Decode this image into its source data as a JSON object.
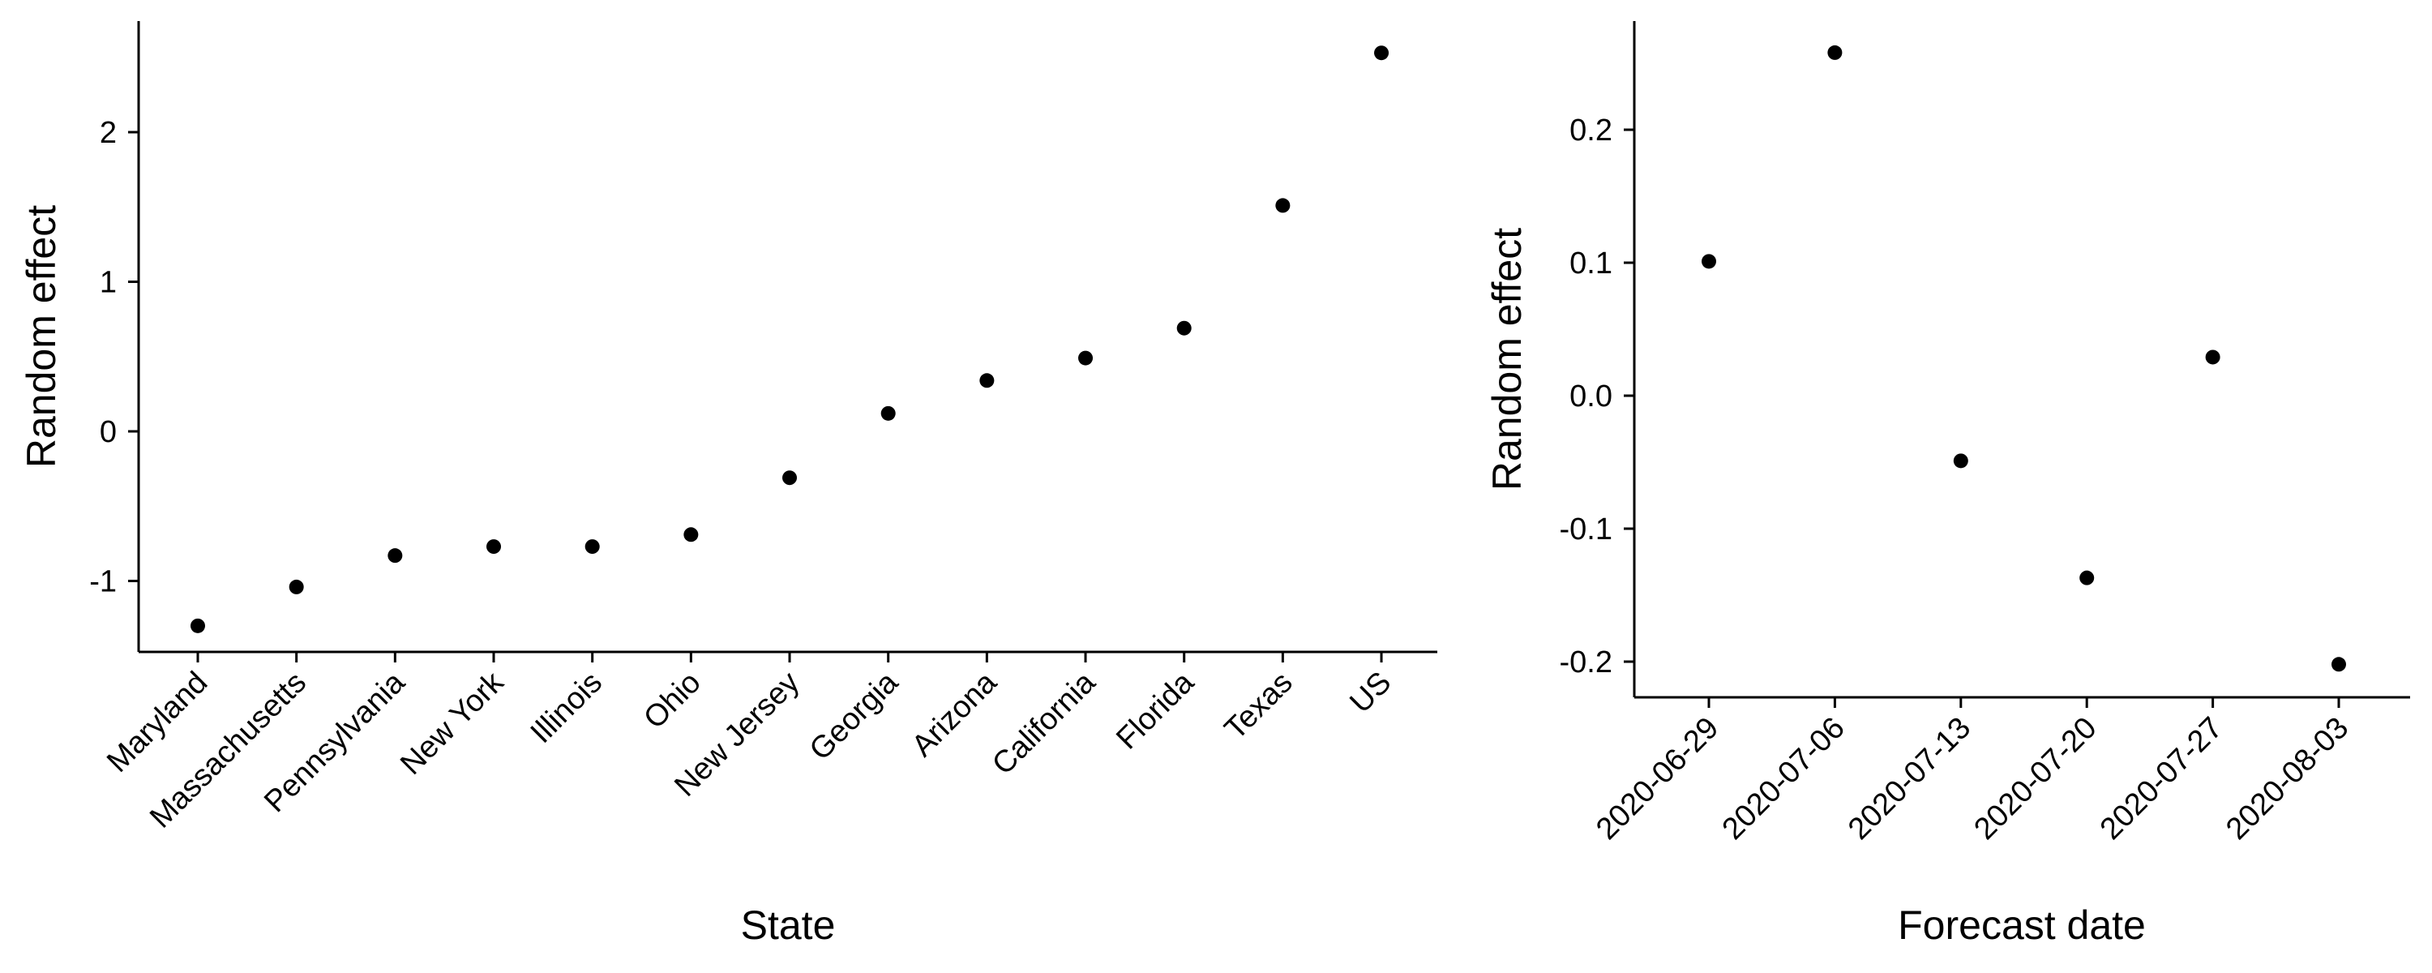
{
  "chart_data": [
    {
      "type": "scatter",
      "xlabel": "State",
      "ylabel": "Random effect",
      "categories": [
        "Maryland",
        "Massachusetts",
        "Pennsylvania",
        "New York",
        "Illinois",
        "Ohio",
        "New Jersey",
        "Georgia",
        "Arizona",
        "California",
        "Florida",
        "Texas",
        "US"
      ],
      "values": [
        -1.3,
        -1.04,
        -0.83,
        -0.77,
        -0.77,
        -0.69,
        -0.31,
        0.12,
        0.34,
        0.49,
        0.69,
        1.51,
        2.53
      ],
      "ylim": [
        -1.5,
        2.75
      ],
      "yticks": [
        -1,
        0,
        1,
        2
      ],
      "grid": false,
      "point_color": "#000000"
    },
    {
      "type": "scatter",
      "xlabel": "Forecast date",
      "ylabel": "Random effect",
      "categories": [
        "2020-06-29",
        "2020-07-06",
        "2020-07-13",
        "2020-07-20",
        "2020-07-27",
        "2020-08-03"
      ],
      "values": [
        0.101,
        0.258,
        -0.049,
        -0.137,
        0.029,
        -0.202
      ],
      "ylim": [
        -0.225,
        0.283
      ],
      "yticks": [
        -0.2,
        -0.1,
        0.0,
        0.1,
        0.2
      ],
      "ytick_labels": [
        "-0.2",
        "-0.1",
        "0.0",
        "0.1",
        "0.2"
      ],
      "grid": false,
      "point_color": "#000000"
    }
  ]
}
